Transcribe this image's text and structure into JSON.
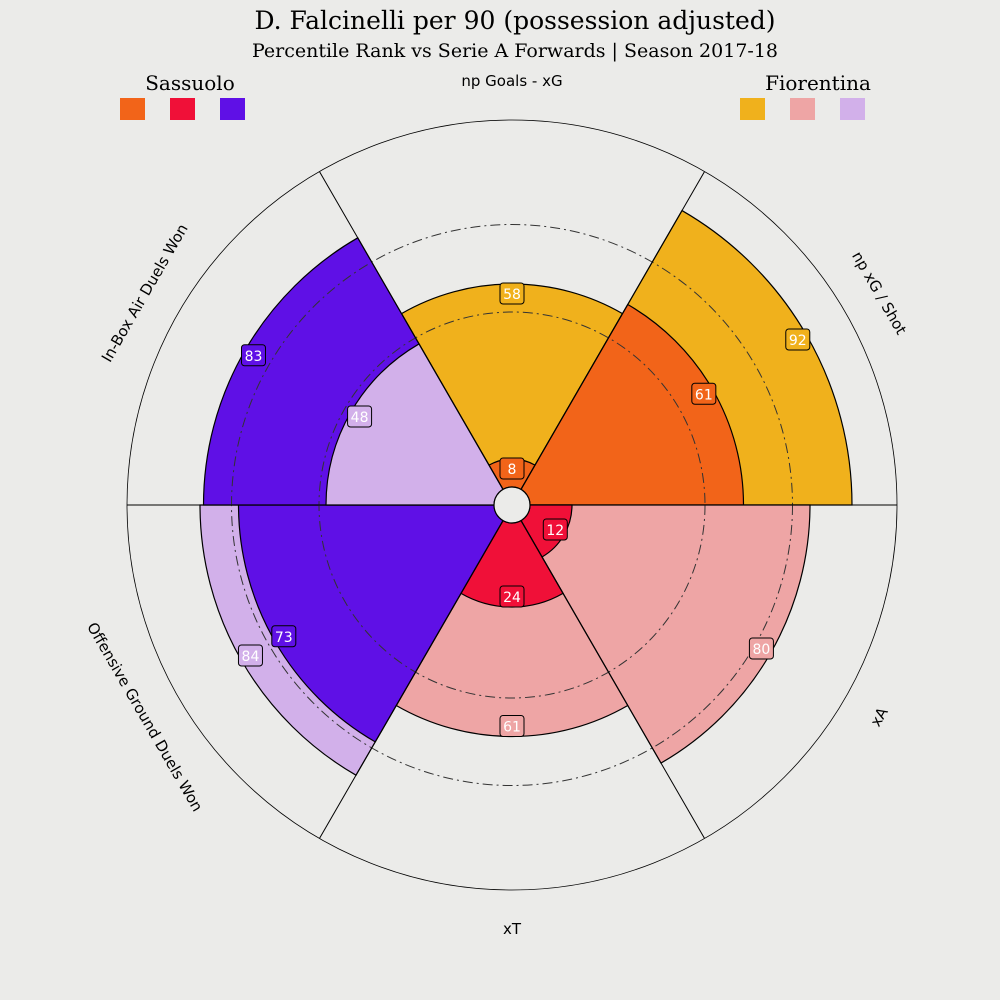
{
  "chart_data": {
    "type": "radar",
    "title": "D. Falcinelli per 90 (possession adjusted)",
    "subtitle": "Percentile Rank vs Serie A Forwards | Season 2017-18",
    "range": [
      0,
      100
    ],
    "teams": [
      {
        "name": "Sassuolo",
        "colors": [
          "#f26419",
          "#f01038",
          "#5f10e6"
        ]
      },
      {
        "name": "Fiorentina",
        "colors": [
          "#f0b11c",
          "#eea5a5",
          "#d2b0ea"
        ]
      }
    ],
    "parameters": [
      {
        "label": "np Goals - xG",
        "sassuolo": 8,
        "fiorentina": 58,
        "sassuolo_color": "#f26419",
        "fiorentina_color": "#f0b11c"
      },
      {
        "label": "np xG / Shot",
        "sassuolo": 61,
        "fiorentina": 92,
        "sassuolo_color": "#f26419",
        "fiorentina_color": "#f0b11c"
      },
      {
        "label": "xA",
        "sassuolo": 12,
        "fiorentina": 80,
        "sassuolo_color": "#f01038",
        "fiorentina_color": "#eea5a5"
      },
      {
        "label": "xT",
        "sassuolo": 24,
        "fiorentina": 61,
        "sassuolo_color": "#f01038",
        "fiorentina_color": "#eea5a5"
      },
      {
        "label": "Offensive Ground Duels Won",
        "sassuolo": 73,
        "fiorentina": 84,
        "sassuolo_color": "#5f10e6",
        "fiorentina_color": "#d2b0ea"
      },
      {
        "label": "In-Box Air Duels Won",
        "sassuolo": 83,
        "fiorentina": 48,
        "sassuolo_color": "#5f10e6",
        "fiorentina_color": "#d2b0ea"
      }
    ]
  }
}
